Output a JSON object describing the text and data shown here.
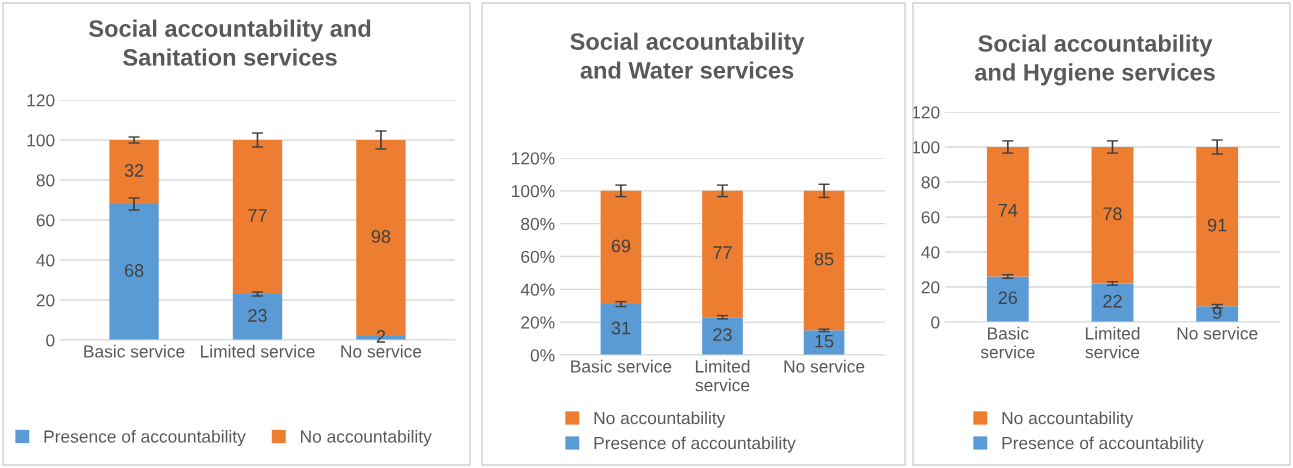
{
  "chart_data": [
    {
      "type": "bar",
      "stacked": true,
      "title": "Social accountability and\nSanitation services",
      "categories": [
        "Basic service",
        "Limited service",
        "No service"
      ],
      "ylim": [
        0,
        120
      ],
      "yticks": [
        0,
        20,
        40,
        60,
        80,
        100,
        120
      ],
      "grid": "y",
      "legend": "bottom",
      "data_labels": true,
      "series": [
        {
          "name": "Presence of accountability",
          "color": "#5b9bd5",
          "values": [
            68,
            23,
            2
          ],
          "errors": [
            3,
            1,
            null
          ]
        },
        {
          "name": "No accountability",
          "color": "#ed7d31",
          "values": [
            32,
            77,
            98
          ],
          "errors": [
            1.5,
            3.5,
            4.5
          ]
        }
      ]
    },
    {
      "type": "bar",
      "stacked": true,
      "title": "Social accountability\nand Water services",
      "categories": [
        "Basic service",
        "Limited\nservice",
        "No service"
      ],
      "ylim": [
        0,
        120
      ],
      "yticks": [
        {
          "value": 0,
          "label": "0%"
        },
        {
          "value": 20,
          "label": "20%"
        },
        {
          "value": 40,
          "label": "40%"
        },
        {
          "value": 60,
          "label": "60%"
        },
        {
          "value": 80,
          "label": "80%"
        },
        {
          "value": 100,
          "label": "100%"
        },
        {
          "value": 120,
          "label": "120%"
        }
      ],
      "grid": "y",
      "legend": "bottom",
      "data_labels": true,
      "series": [
        {
          "name": "Presence of accountability",
          "color": "#5b9bd5",
          "values": [
            31,
            23,
            15
          ],
          "errors": [
            1.5,
            1,
            0.7
          ]
        },
        {
          "name": "No accountability",
          "color": "#ed7d31",
          "values": [
            69,
            77,
            85
          ],
          "errors": [
            3.5,
            3.5,
            4
          ]
        }
      ]
    },
    {
      "type": "bar",
      "stacked": true,
      "title": "Social accountability\nand Hygiene services",
      "categories": [
        "Basic\nservice",
        "Limited\nservice",
        "No service"
      ],
      "ylim": [
        0,
        120
      ],
      "yticks": [
        0,
        20,
        40,
        60,
        80,
        100,
        120
      ],
      "grid": "y",
      "legend": "bottom",
      "data_labels": true,
      "series": [
        {
          "name": "Presence of accountability",
          "color": "#5b9bd5",
          "values": [
            26,
            22,
            9
          ],
          "errors": [
            1,
            1,
            1
          ]
        },
        {
          "name": "No accountability",
          "color": "#ed7d31",
          "values": [
            74,
            78,
            91
          ],
          "errors": [
            3.5,
            3.5,
            4
          ]
        }
      ]
    }
  ]
}
